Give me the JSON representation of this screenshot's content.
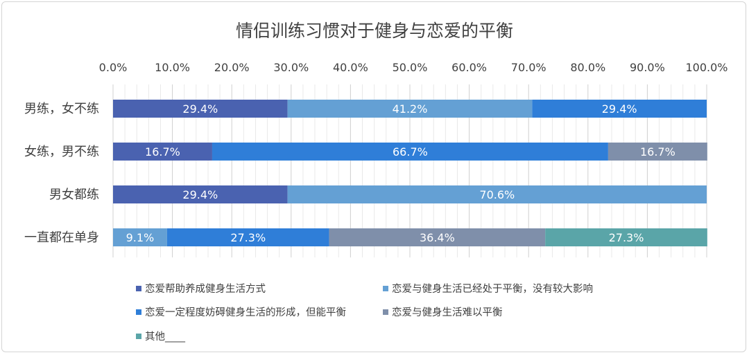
{
  "chart_data": {
    "type": "bar",
    "orientation": "horizontal",
    "stacked": "percent",
    "title": "情侣训练习惯对于健身与恋爱的平衡",
    "categories": [
      "男练，女不练",
      "女练，男不练",
      "男女都练",
      "一直都在单身"
    ],
    "xlim": [
      0,
      100
    ],
    "x_ticks": [
      "0.0%",
      "10.0%",
      "20.0%",
      "30.0%",
      "40.0%",
      "50.0%",
      "60.0%",
      "70.0%",
      "80.0%",
      "90.0%",
      "100.0%"
    ],
    "grid": true,
    "legend_position": "bottom",
    "series": [
      {
        "name": "恋爱帮助养成健身生活方式",
        "color": "#4a62b0",
        "values": [
          29.4,
          16.7,
          29.4,
          0
        ],
        "labels": [
          "29.4%",
          "16.7%",
          "29.4%",
          ""
        ]
      },
      {
        "name": "恋爱与健身生活已经处于平衡，没有较大影响",
        "color": "#64a0d4",
        "values": [
          41.2,
          0,
          70.6,
          9.1
        ],
        "labels": [
          "41.2%",
          "",
          "70.6%",
          "9.1%"
        ]
      },
      {
        "name": "恋爱一定程度妨碍健身生活的形成，但能平衡",
        "color": "#2f7ed8",
        "values": [
          29.4,
          66.7,
          0,
          27.3
        ],
        "labels": [
          "29.4%",
          "66.7%",
          "",
          "27.3%"
        ]
      },
      {
        "name": "恋爱与健身生活难以平衡",
        "color": "#7f8faa",
        "values": [
          0,
          16.7,
          0,
          36.4
        ],
        "labels": [
          "",
          "16.7%",
          "",
          "36.4%"
        ]
      },
      {
        "name": "其他____",
        "color": "#5aa5a8",
        "values": [
          0,
          0,
          0,
          27.3
        ],
        "labels": [
          "",
          "",
          "",
          "27.3%"
        ]
      }
    ]
  }
}
